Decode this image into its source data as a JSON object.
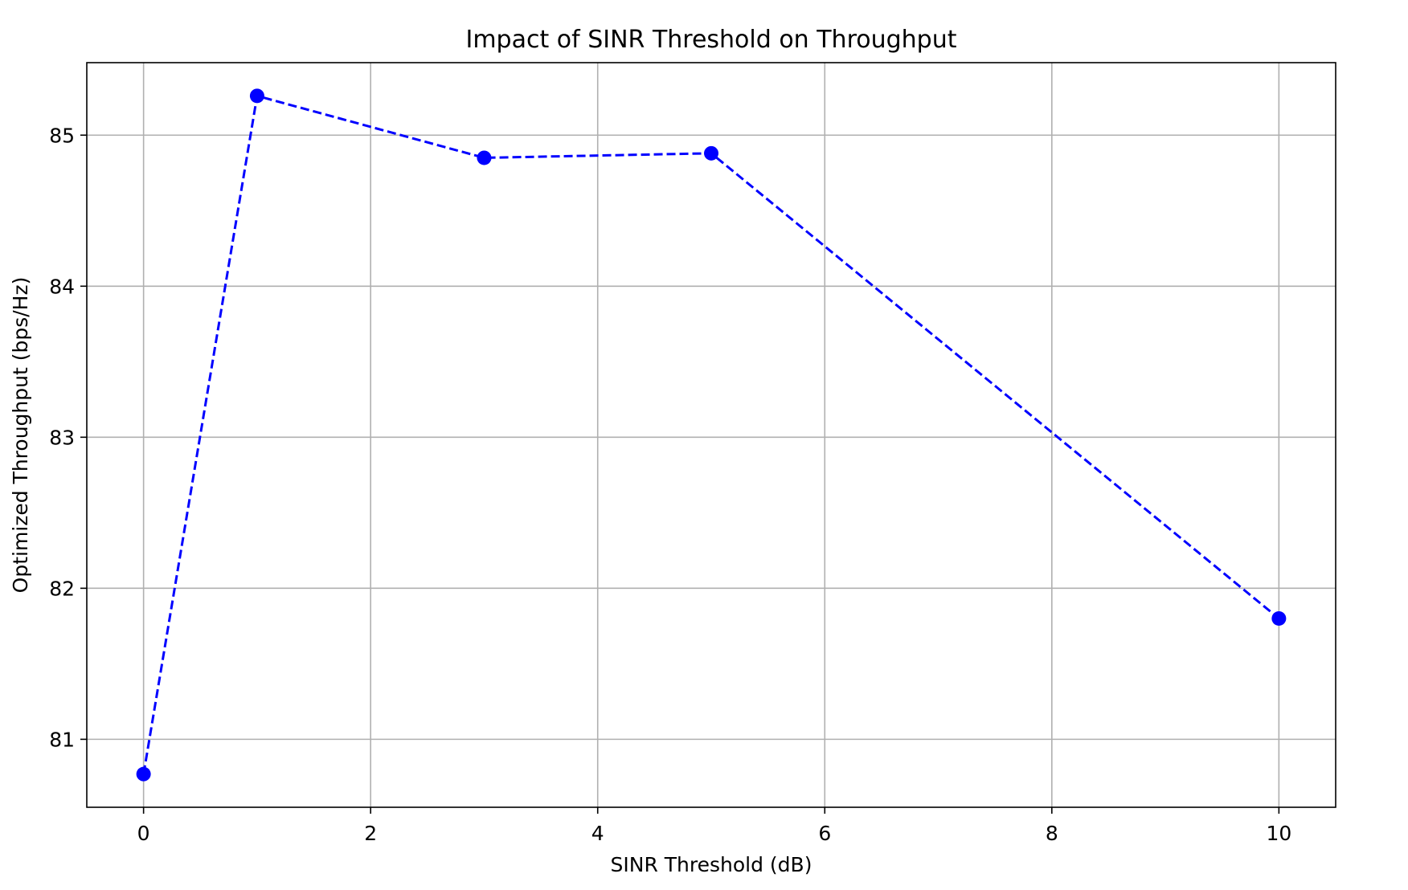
{
  "chart_data": {
    "type": "line",
    "title": "Impact of SINR Threshold on Throughput",
    "xlabel": "SINR Threshold (dB)",
    "ylabel": "Optimized Throughput (bps/Hz)",
    "xlim": [
      -0.5,
      10.5
    ],
    "ylim": [
      80.55,
      85.48
    ],
    "x_ticks": [
      0,
      2,
      4,
      6,
      8,
      10
    ],
    "x_tick_labels": [
      "0",
      "2",
      "4",
      "6",
      "8",
      "10"
    ],
    "y_ticks": [
      81,
      82,
      83,
      84,
      85
    ],
    "y_tick_labels": [
      "81",
      "82",
      "83",
      "84",
      "85"
    ],
    "grid": true,
    "legend": "none",
    "series": [
      {
        "x": [
          0,
          1,
          3,
          5,
          10
        ],
        "y": [
          80.77,
          85.26,
          84.85,
          84.88,
          81.8
        ],
        "color": "#0000ff",
        "line_style": "dashed",
        "marker": "circle"
      }
    ]
  }
}
